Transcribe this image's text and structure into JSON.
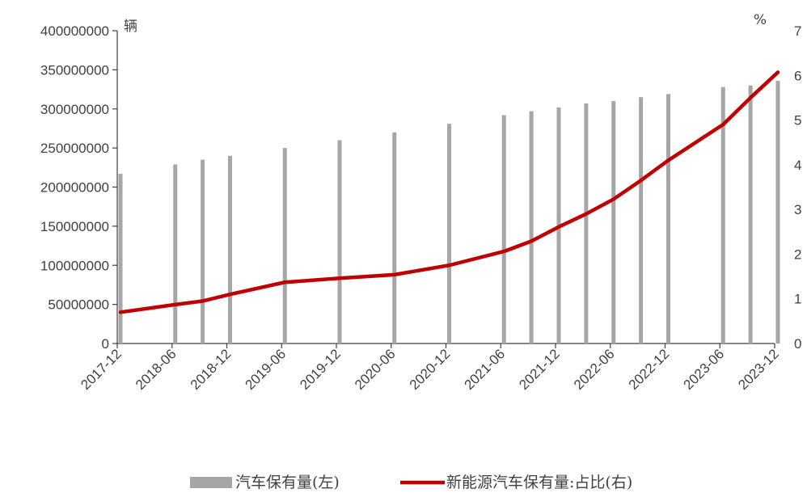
{
  "chart_data": {
    "type": "bar+line",
    "left_unit": "辆",
    "right_unit": "%",
    "x_tick_labels": [
      "2017-12",
      "2018-06",
      "2018-12",
      "2019-06",
      "2019-12",
      "2020-06",
      "2020-12",
      "2021-06",
      "2021-12",
      "2022-06",
      "2022-12",
      "2023-06",
      "2023-12"
    ],
    "y_left": {
      "ticks": [
        "0",
        "50000000",
        "100000000",
        "150000000",
        "200000000",
        "250000000",
        "300000000",
        "350000000",
        "400000000"
      ],
      "range": [
        0,
        400000000
      ]
    },
    "y_right": {
      "ticks": [
        "0",
        "1",
        "2",
        "3",
        "4",
        "5",
        "6",
        "7"
      ],
      "range": [
        0,
        7
      ]
    },
    "bars": {
      "name": "汽车保有量(左)",
      "color": "#a6a6a6",
      "x": [
        "2017-12",
        "2018-06",
        "2018-09",
        "2018-12",
        "2019-06",
        "2019-12",
        "2020-06",
        "2020-12",
        "2021-06",
        "2021-09",
        "2021-12",
        "2022-03",
        "2022-06",
        "2022-09",
        "2022-12",
        "2023-06",
        "2023-09",
        "2023-12"
      ],
      "values": [
        217000000,
        229000000,
        235000000,
        240000000,
        250000000,
        260000000,
        270000000,
        281000000,
        292000000,
        297000000,
        302000000,
        307000000,
        310000000,
        315000000,
        319000000,
        328000000,
        330000000,
        336000000
      ]
    },
    "line": {
      "name": "新能源汽车保有量:占比(右)",
      "color": "#c00000",
      "x": [
        "2017-12",
        "2018-06",
        "2018-09",
        "2018-12",
        "2019-06",
        "2019-12",
        "2020-06",
        "2020-12",
        "2021-06",
        "2021-09",
        "2021-12",
        "2022-03",
        "2022-06",
        "2022-09",
        "2022-12",
        "2023-06",
        "2023-09",
        "2023-12"
      ],
      "values": [
        0.7,
        0.87,
        0.95,
        1.1,
        1.37,
        1.46,
        1.54,
        1.75,
        2.06,
        2.29,
        2.61,
        2.9,
        3.23,
        3.65,
        4.1,
        4.9,
        5.5,
        6.07
      ]
    },
    "legend_position": "bottom"
  }
}
